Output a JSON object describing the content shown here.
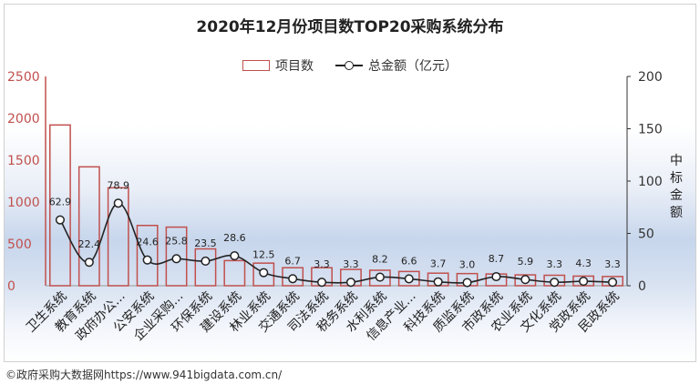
{
  "title": "2020年12月份项目数TOP20采购系统分布",
  "legend": {
    "bar_label": "项目数",
    "line_label": "总金额（亿元）"
  },
  "y2_label": "中标金额",
  "footer": "©政府采购大数据网https://www.941bigdata.com.cn/",
  "colors": {
    "bar": "#c0504d",
    "line": "#222222"
  },
  "chart_data": {
    "type": "bar",
    "title": "2020年12月份项目数TOP20采购系统分布",
    "categories": [
      "卫生系统",
      "教育系统",
      "政府办公...",
      "公安系统",
      "企业采购...",
      "环保系统",
      "建设系统",
      "林业系统",
      "交通系统",
      "司法系统",
      "税务系统",
      "水利系统",
      "信息产业...",
      "科技系统",
      "质监系统",
      "市政系统",
      "农业系统",
      "文化系统",
      "党政系统",
      "民政系统"
    ],
    "series": [
      {
        "name": "项目数",
        "type": "bar",
        "axis": "left",
        "values": [
          1920,
          1420,
          1170,
          720,
          700,
          440,
          300,
          270,
          215,
          215,
          195,
          185,
          170,
          150,
          145,
          140,
          130,
          125,
          115,
          110
        ]
      },
      {
        "name": "总金额（亿元）",
        "type": "line",
        "axis": "right",
        "values": [
          62.9,
          22.4,
          78.9,
          24.6,
          25.8,
          23.5,
          28.6,
          12.5,
          6.7,
          3.3,
          3.3,
          8.2,
          6.6,
          3.7,
          3.0,
          8.7,
          5.9,
          3.3,
          4.3,
          3.3
        ],
        "labels": [
          "62.9",
          "22.4",
          "78.9",
          "24.6",
          "25.8",
          "23.5",
          "28.6",
          "12.5",
          "6.7",
          "3.3",
          "3.3",
          "8.2",
          "6.6",
          "3.7",
          "3.0",
          "8.7",
          "5.9",
          "3.3",
          "4.3",
          "3.3"
        ]
      }
    ],
    "ylim": [
      0,
      2500
    ],
    "y_ticks": [
      "0",
      "500",
      "1000",
      "1500",
      "2000",
      "2500"
    ],
    "y2lim": [
      0,
      200
    ],
    "y2_ticks": [
      "0",
      "50",
      "100",
      "150",
      "200"
    ],
    "y2label": "中标金额",
    "legend_position": "top",
    "grid": false
  }
}
